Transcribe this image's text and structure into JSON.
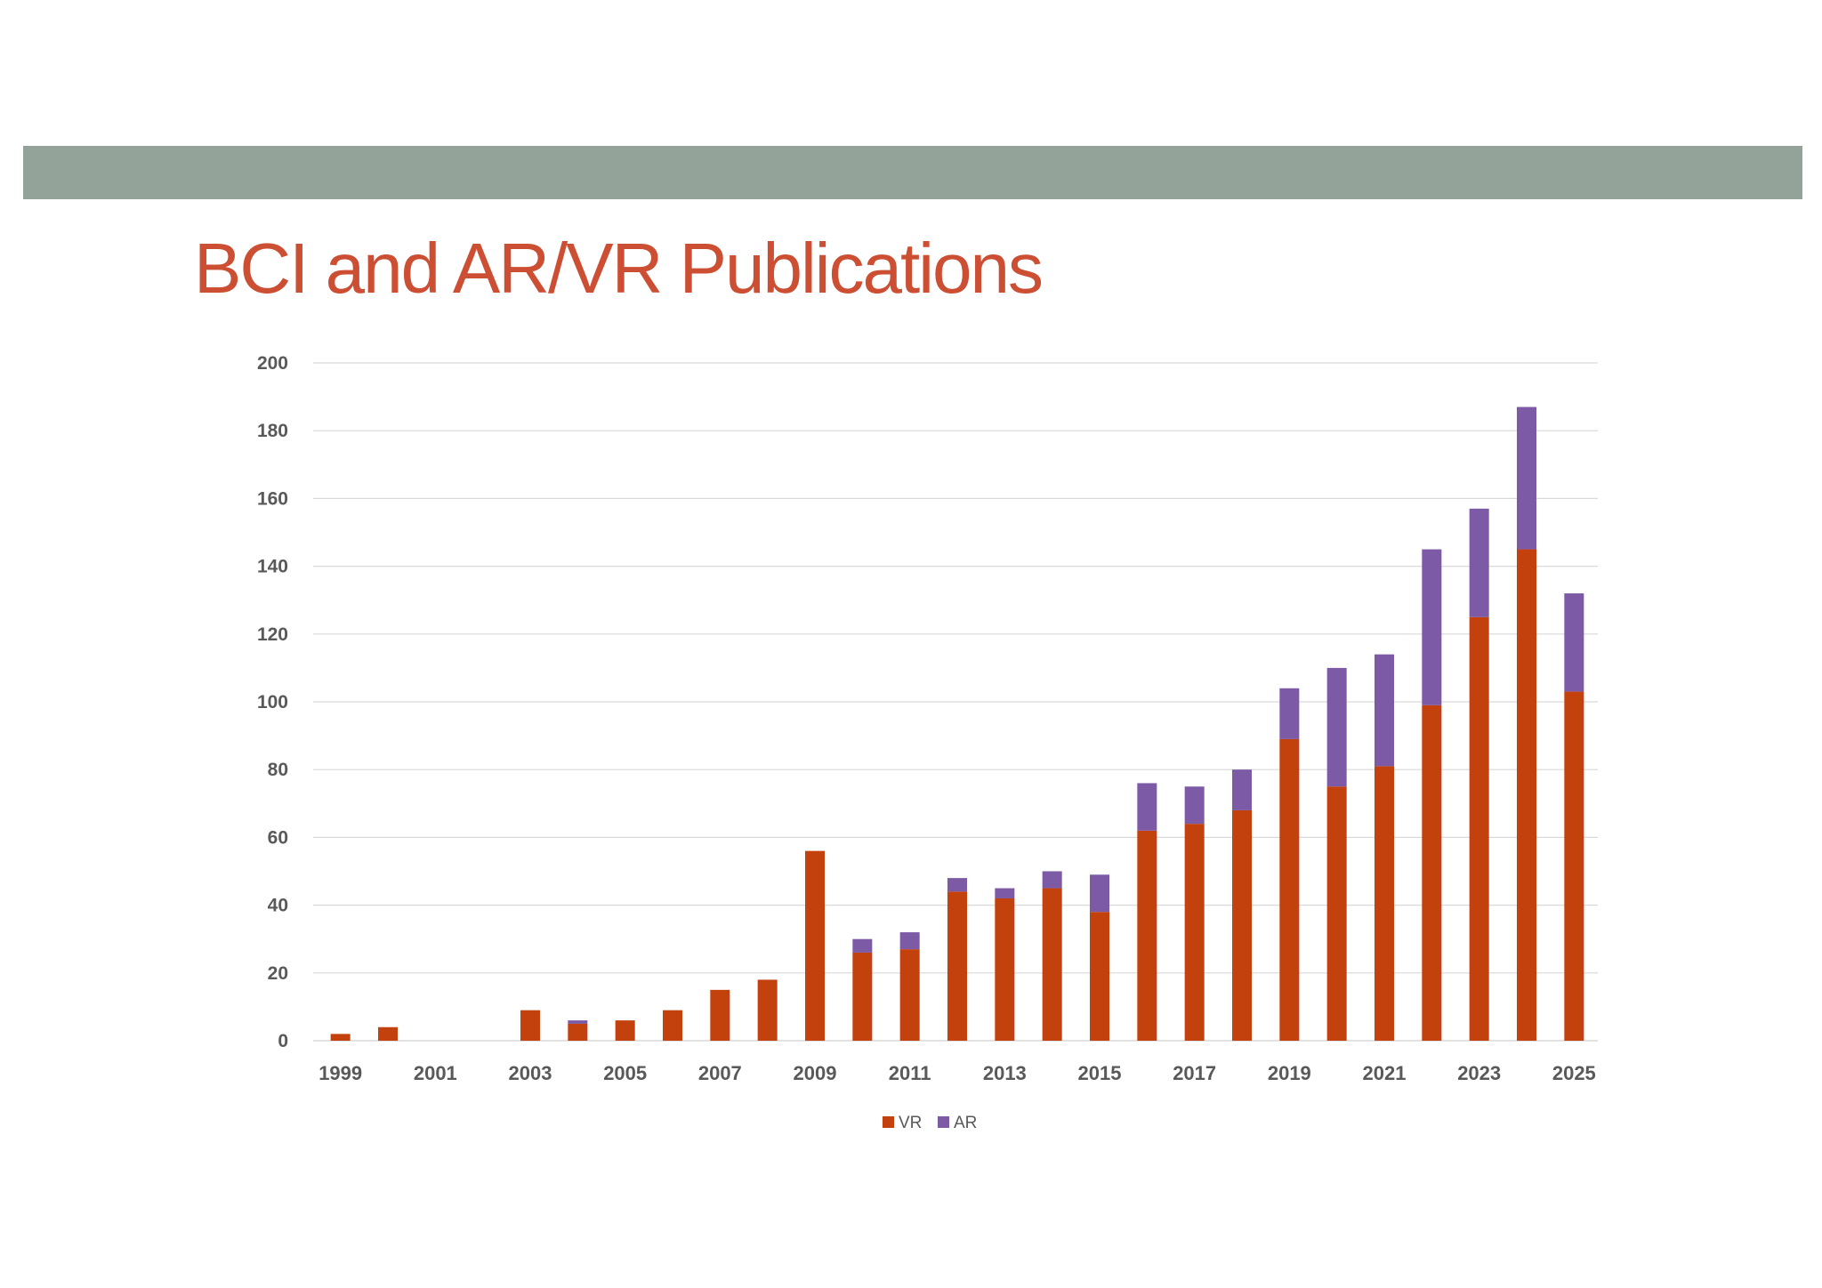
{
  "slide": {
    "title": "BCI and AR/VR Publications"
  },
  "colors": {
    "band": "#93a399",
    "title": "#cc4e33",
    "vr": "#c2410c",
    "ar": "#7c5aa6",
    "grid": "#d9d9d9",
    "tick_text": "#595959"
  },
  "chart_data": {
    "type": "bar",
    "stacked": true,
    "title": "",
    "xlabel": "",
    "ylabel": "",
    "ylim": [
      0,
      200
    ],
    "yticks": [
      0,
      20,
      40,
      60,
      80,
      100,
      120,
      140,
      160,
      180,
      200
    ],
    "grid": true,
    "legend": "bottom-center",
    "categories": [
      "1999",
      "2000",
      "2001",
      "2002",
      "2003",
      "2004",
      "2005",
      "2006",
      "2007",
      "2008",
      "2009",
      "2010",
      "2011",
      "2012",
      "2013",
      "2014",
      "2015",
      "2016",
      "2017",
      "2018",
      "2019",
      "2020",
      "2021",
      "2022",
      "2023",
      "2024",
      "2025"
    ],
    "category_labels": [
      "1999",
      "",
      "2001",
      "",
      "2003",
      "",
      "2005",
      "",
      "2007",
      "",
      "2009",
      "",
      "2011",
      "",
      "2013",
      "",
      "2015",
      "",
      "2017",
      "",
      "2019",
      "",
      "2021",
      "",
      "2023",
      "",
      "2025"
    ],
    "series": [
      {
        "name": "VR",
        "color": "#c2410c",
        "values": [
          2,
          4,
          0,
          0,
          9,
          5,
          6,
          9,
          15,
          18,
          56,
          26,
          27,
          44,
          42,
          45,
          38,
          62,
          64,
          68,
          89,
          75,
          81,
          99,
          125,
          145,
          103
        ]
      },
      {
        "name": "AR",
        "color": "#7c5aa6",
        "values": [
          0,
          0,
          0,
          0,
          0,
          1,
          0,
          0,
          0,
          0,
          0,
          4,
          5,
          4,
          3,
          5,
          11,
          14,
          11,
          12,
          15,
          35,
          33,
          46,
          32,
          42,
          29
        ]
      }
    ]
  }
}
